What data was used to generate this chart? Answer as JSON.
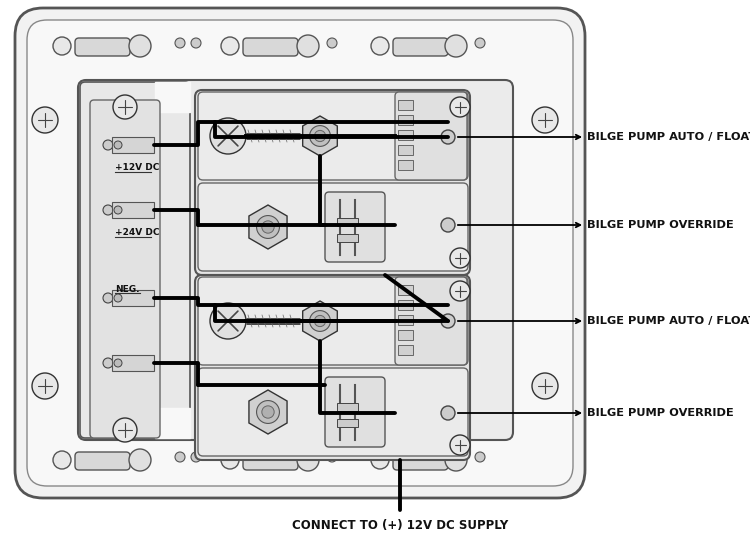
{
  "bg_color": "#ffffff",
  "panel_outer_color": "#f0f0f0",
  "panel_inner_color": "#f5f5f5",
  "board_color": "#eeeeee",
  "line_color": "#000000",
  "dark_line": "#111111",
  "mid_gray": "#888888",
  "light_gray": "#cccccc",
  "component_gray": "#d8d8d8",
  "labels": {
    "label1": "BILGE PUMP AUTO / FLOAT SWITCH",
    "label2": "BILGE PUMP OVERRIDE",
    "label3": "BILGE PUMP AUTO / FLOAT SWITCH",
    "label4": "BILGE PUMP OVERRIDE",
    "label5": "CONNECT TO (+) 12V DC SUPPLY",
    "lv12": "+12V DC",
    "lv24": "+24V DC",
    "neg": "NEG."
  },
  "figsize": [
    7.5,
    5.38
  ],
  "dpi": 100
}
